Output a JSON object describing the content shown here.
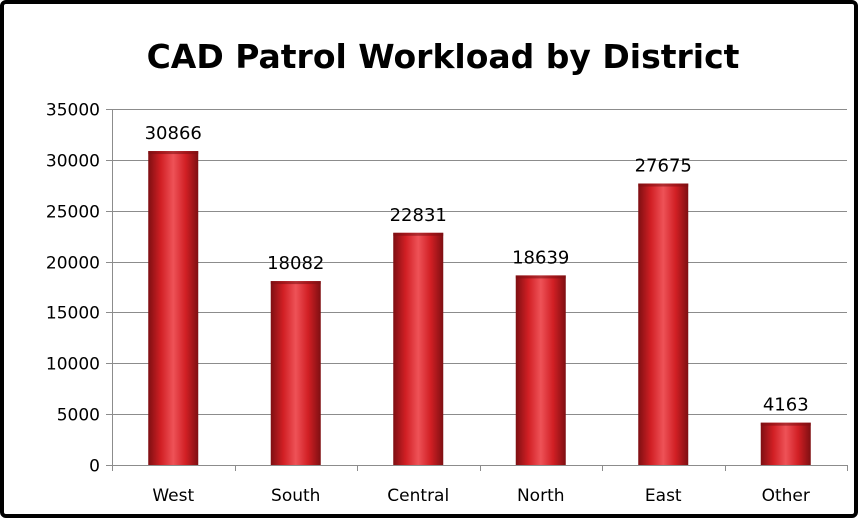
{
  "chart_data": {
    "type": "bar",
    "title": "CAD Patrol Workload by District",
    "xlabel": "",
    "ylabel": "",
    "categories": [
      "West",
      "South",
      "Central",
      "North",
      "East",
      "Other"
    ],
    "values": [
      30866,
      18082,
      22831,
      18639,
      27675,
      4163
    ],
    "data_labels": [
      "30866",
      "18082",
      "22831",
      "18639",
      "27675",
      "4163"
    ],
    "ylim": [
      0,
      35000
    ],
    "yticks": [
      0,
      5000,
      10000,
      15000,
      20000,
      25000,
      30000,
      35000
    ],
    "ytick_labels": [
      "0",
      "5000",
      "10000",
      "15000",
      "20000",
      "25000",
      "30000",
      "35000"
    ],
    "grid": true,
    "legend": "none",
    "colors": {
      "bar_main": "#d11f24",
      "bar_dark": "#7e0f12",
      "bar_light": "#ee5257",
      "gridline": "#8c8c8c",
      "axis": "#8c8c8c",
      "frame": "#000000"
    }
  }
}
